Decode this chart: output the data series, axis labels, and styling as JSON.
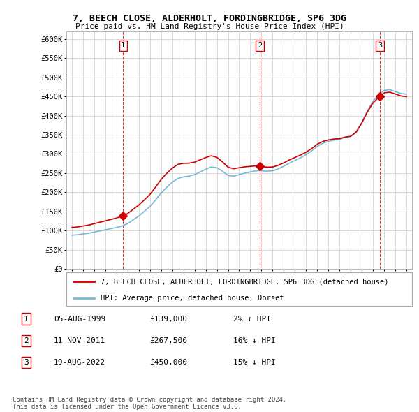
{
  "title": "7, BEECH CLOSE, ALDERHOLT, FORDINGBRIDGE, SP6 3DG",
  "subtitle": "Price paid vs. HM Land Registry's House Price Index (HPI)",
  "legend_line1": "7, BEECH CLOSE, ALDERHOLT, FORDINGBRIDGE, SP6 3DG (detached house)",
  "legend_line2": "HPI: Average price, detached house, Dorset",
  "table": [
    {
      "num": "1",
      "date": "05-AUG-1999",
      "price": "£139,000",
      "change": "2% ↑ HPI"
    },
    {
      "num": "2",
      "date": "11-NOV-2011",
      "price": "£267,500",
      "change": "16% ↓ HPI"
    },
    {
      "num": "3",
      "date": "19-AUG-2022",
      "price": "£450,000",
      "change": "15% ↓ HPI"
    }
  ],
  "footer": "Contains HM Land Registry data © Crown copyright and database right 2024.\nThis data is licensed under the Open Government Licence v3.0.",
  "sale_dates_num": [
    1999.59,
    2011.86,
    2022.63
  ],
  "sale_prices": [
    139000,
    267500,
    450000
  ],
  "sale_labels": [
    "1",
    "2",
    "3"
  ],
  "hpi_color": "#7ab8d9",
  "price_color": "#cc0000",
  "marker_color": "#cc0000",
  "ylim": [
    0,
    620000
  ],
  "yticks": [
    0,
    50000,
    100000,
    150000,
    200000,
    250000,
    300000,
    350000,
    400000,
    450000,
    500000,
    550000,
    600000
  ],
  "ytick_labels": [
    "£0",
    "£50K",
    "£100K",
    "£150K",
    "£200K",
    "£250K",
    "£300K",
    "£350K",
    "£400K",
    "£450K",
    "£500K",
    "£550K",
    "£600K"
  ],
  "xlim_start": 1994.5,
  "xlim_end": 2025.5,
  "background_color": "#ffffff",
  "grid_color": "#cccccc",
  "hpi_years": [
    1995.0,
    1995.5,
    1996.0,
    1996.5,
    1997.0,
    1997.5,
    1998.0,
    1998.5,
    1999.0,
    1999.5,
    2000.0,
    2000.5,
    2001.0,
    2001.5,
    2002.0,
    2002.5,
    2003.0,
    2003.5,
    2004.0,
    2004.5,
    2005.0,
    2005.5,
    2006.0,
    2006.5,
    2007.0,
    2007.5,
    2008.0,
    2008.5,
    2009.0,
    2009.5,
    2010.0,
    2010.5,
    2011.0,
    2011.5,
    2012.0,
    2012.5,
    2013.0,
    2013.5,
    2014.0,
    2014.5,
    2015.0,
    2015.5,
    2016.0,
    2016.5,
    2017.0,
    2017.5,
    2018.0,
    2018.5,
    2019.0,
    2019.5,
    2020.0,
    2020.5,
    2021.0,
    2021.5,
    2022.0,
    2022.5,
    2023.0,
    2023.5,
    2024.0,
    2024.5,
    2025.0
  ],
  "hpi_values": [
    88000,
    89000,
    91000,
    93000,
    96000,
    99000,
    102000,
    105000,
    108000,
    112000,
    118000,
    128000,
    138000,
    150000,
    163000,
    180000,
    198000,
    213000,
    226000,
    236000,
    240000,
    242000,
    246000,
    253000,
    260000,
    266000,
    264000,
    255000,
    244000,
    242000,
    246000,
    250000,
    253000,
    256000,
    256000,
    255000,
    256000,
    261000,
    268000,
    276000,
    283000,
    290000,
    298000,
    308000,
    320000,
    328000,
    333000,
    336000,
    338000,
    343000,
    346000,
    358000,
    383000,
    413000,
    438000,
    453000,
    466000,
    468000,
    463000,
    458000,
    456000
  ]
}
